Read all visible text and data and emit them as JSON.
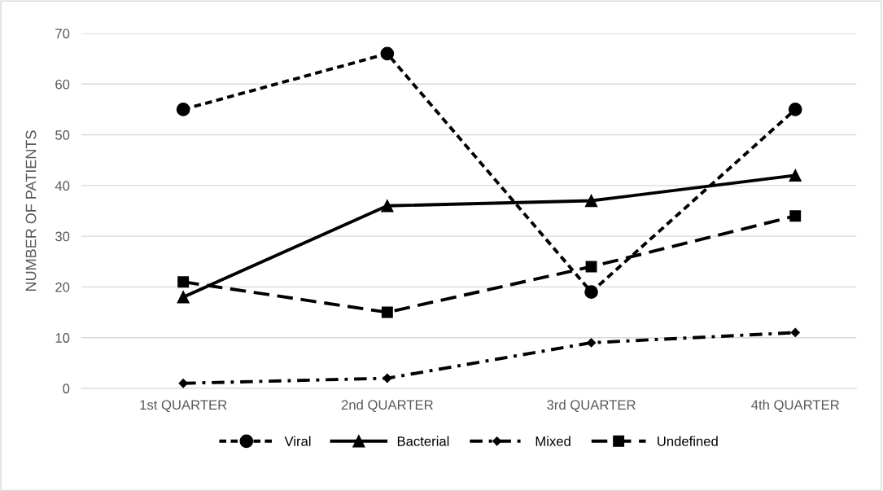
{
  "chart_data": {
    "type": "line",
    "ylabel": "NUMBER OF PATIENTS",
    "categories": [
      "1st QUARTER",
      "2nd QUARTER",
      "3rd QUARTER",
      "4th QUARTER"
    ],
    "series": [
      {
        "name": "Viral",
        "color": "#000000",
        "values": [
          55,
          66,
          19,
          55
        ],
        "marker": "circle",
        "line_style": "dashed"
      },
      {
        "name": "Bacterial",
        "color": "#000000",
        "values": [
          18,
          36,
          37,
          42
        ],
        "marker": "triangle",
        "line_style": "solid"
      },
      {
        "name": "Mixed",
        "color": "#000000",
        "values": [
          1,
          2,
          9,
          11
        ],
        "marker": "diamond",
        "line_style": "dashdot"
      },
      {
        "name": "Undefined",
        "color": "#000000",
        "values": [
          21,
          15,
          24,
          34
        ],
        "marker": "square",
        "line_style": "longdash"
      }
    ],
    "ylim": [
      0,
      70
    ],
    "yticks": [
      0,
      10,
      20,
      30,
      40,
      50,
      60,
      70
    ],
    "grid": "y",
    "legend": "bottom"
  }
}
